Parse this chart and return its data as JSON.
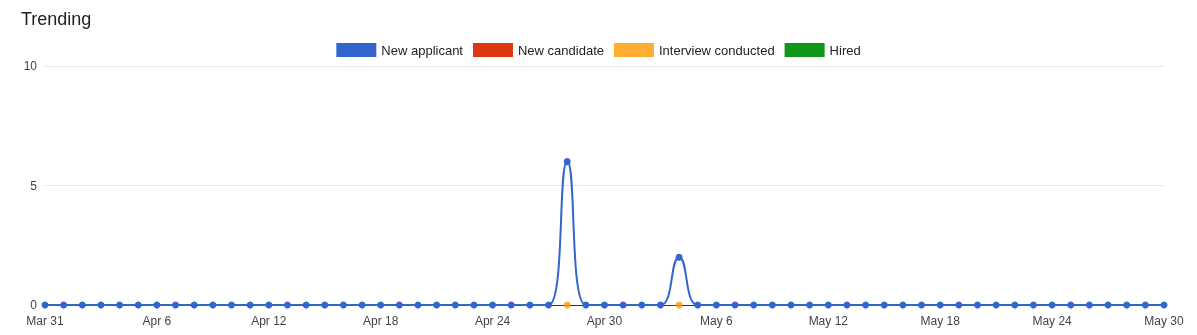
{
  "chart_data": {
    "type": "line",
    "title": "Trending",
    "categories": [
      "Mar 31",
      null,
      null,
      null,
      null,
      null,
      "Apr 6",
      null,
      null,
      null,
      null,
      null,
      "Apr 12",
      null,
      null,
      null,
      null,
      null,
      "Apr 18",
      null,
      null,
      null,
      null,
      null,
      "Apr 24",
      null,
      null,
      null,
      null,
      null,
      "Apr 30",
      null,
      null,
      null,
      null,
      null,
      "May 6",
      null,
      null,
      null,
      null,
      null,
      "May 12",
      null,
      null,
      null,
      null,
      null,
      "May 18",
      null,
      null,
      null,
      null,
      null,
      "May 24",
      null,
      null,
      null,
      null,
      null,
      "May 30"
    ],
    "series": [
      {
        "name": "New applicant",
        "color": "#3366cc",
        "values": [
          0,
          0,
          0,
          0,
          0,
          0,
          0,
          0,
          0,
          0,
          0,
          0,
          0,
          0,
          0,
          0,
          0,
          0,
          0,
          0,
          0,
          0,
          0,
          0,
          0,
          0,
          0,
          0,
          6,
          0,
          0,
          0,
          0,
          0,
          2,
          0,
          0,
          0,
          0,
          0,
          0,
          0,
          0,
          0,
          0,
          0,
          0,
          0,
          0,
          0,
          0,
          0,
          0,
          0,
          0,
          0,
          0,
          0,
          0,
          0,
          0
        ]
      },
      {
        "name": "New candidate",
        "color": "#dc3912",
        "values": [
          null,
          null,
          null,
          null,
          null,
          null,
          null,
          null,
          null,
          null,
          null,
          null,
          null,
          null,
          null,
          null,
          null,
          null,
          null,
          null,
          null,
          null,
          null,
          null,
          null,
          null,
          null,
          null,
          null,
          null,
          null,
          null,
          null,
          null,
          null,
          null,
          null,
          null,
          null,
          null,
          null,
          null,
          null,
          null,
          null,
          null,
          null,
          null,
          null,
          null,
          null,
          null,
          null,
          null,
          null,
          null,
          null,
          null,
          null,
          null,
          null
        ]
      },
      {
        "name": "Interview conducted",
        "type": "scatter",
        "color": "#ff9900",
        "values": [
          null,
          null,
          null,
          null,
          null,
          null,
          null,
          null,
          null,
          null,
          null,
          null,
          null,
          null,
          null,
          null,
          null,
          null,
          null,
          null,
          null,
          null,
          null,
          null,
          null,
          null,
          null,
          null,
          0,
          null,
          null,
          null,
          null,
          null,
          0,
          null,
          null,
          null,
          null,
          null,
          null,
          null,
          null,
          null,
          null,
          null,
          null,
          null,
          null,
          null,
          null,
          null,
          null,
          null,
          null,
          null,
          null,
          null,
          null,
          null,
          null
        ]
      },
      {
        "name": "Hired",
        "color": "#109618",
        "values": [
          null,
          null,
          null,
          null,
          null,
          null,
          null,
          null,
          null,
          null,
          null,
          null,
          null,
          null,
          null,
          null,
          null,
          null,
          null,
          null,
          null,
          null,
          null,
          null,
          null,
          null,
          null,
          null,
          null,
          null,
          null,
          null,
          null,
          null,
          null,
          null,
          null,
          null,
          null,
          null,
          null,
          null,
          null,
          null,
          null,
          null,
          null,
          null,
          null,
          null,
          null,
          null,
          null,
          null,
          null,
          null,
          null,
          null,
          null,
          null,
          null
        ]
      }
    ],
    "ylim": [
      0,
      10
    ],
    "yticks": [
      0,
      5,
      10
    ],
    "grid": "y",
    "legend": "top",
    "marker": "circle",
    "line_style": "solid"
  }
}
